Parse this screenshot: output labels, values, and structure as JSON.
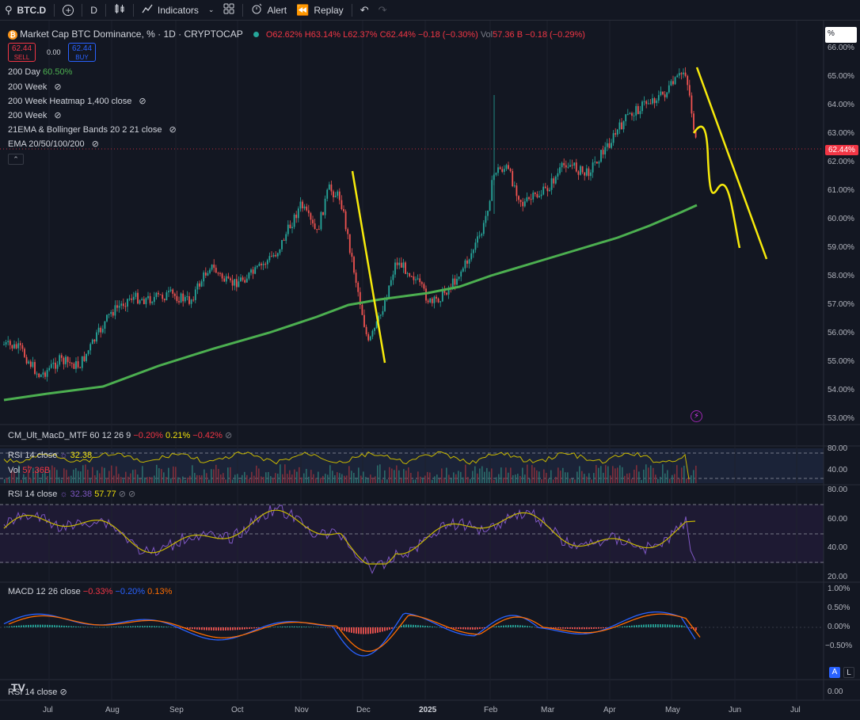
{
  "toolbar": {
    "symbol": "BTC.D",
    "interval": "D",
    "indicators": "Indicators",
    "alert": "Alert",
    "replay": "Replay"
  },
  "header": {
    "title": "Market Cap BTC Dominance, % · 1D · CRYPTOCAP",
    "o": "O62.62%",
    "h": "H63.14%",
    "l": "L62.37%",
    "c": "C62.44%",
    "chg": "−0.18 (−0.30%)",
    "vol_label": "Vol",
    "vol": "57.36",
    "vol_unit": "B",
    "vol_chg": "−0.18 (−0.29%)"
  },
  "trade": {
    "sell_price": "62.44",
    "sell_label": "SELL",
    "spread": "0.00",
    "buy_price": "62.44",
    "buy_label": "BUY"
  },
  "studies": {
    "ma200d_label": "200 Day",
    "ma200d_value": "60.50%",
    "s1": "200 Week",
    "s2": "200 Week Heatmap 1,400 close",
    "s3": "200 Week",
    "s4": "21EMA & Bollinger Bands 20 2 21 close",
    "s5": "EMA 20/50/100/200"
  },
  "price_axis": {
    "unit_box": "%",
    "labels": [
      "66.00%",
      "65.00%",
      "64.00%",
      "63.00%",
      "62.00%",
      "61.00%",
      "60.00%",
      "59.00%",
      "58.00%",
      "57.00%",
      "56.00%",
      "55.00%",
      "54.00%",
      "53.00%"
    ],
    "last": "62.44%"
  },
  "pane_macd_mtf": {
    "label": "CM_Ult_MacD_MTF 60 12 26 9",
    "v1": "−0.20%",
    "v2": "0.21%",
    "v3": "−0.42%"
  },
  "pane_rsi_small": {
    "label": "RSI 14 close",
    "v1": "32.38",
    "vol_label": "Vol",
    "vol_value": "57.36B",
    "axis": [
      "80.00",
      "40.00"
    ]
  },
  "pane_rsi": {
    "label": "RSI 14 close",
    "v1": "32.38",
    "v2": "57.77",
    "axis": [
      "80.00",
      "60.00",
      "40.00",
      "20.00"
    ]
  },
  "pane_macd": {
    "label": "MACD 12 26 close",
    "v1": "−0.33%",
    "v2": "−0.20%",
    "v3": "0.13%",
    "axis": [
      "1.00%",
      "0.50%",
      "0.00%",
      "−0.50%"
    ]
  },
  "pane_bottom": {
    "label": "RSI 14 close",
    "axis": "0.00"
  },
  "x_axis": [
    "Jul",
    "Aug",
    "Sep",
    "Oct",
    "Nov",
    "Dec",
    "2025",
    "Feb",
    "Mar",
    "Apr",
    "May",
    "Jun",
    "Jul"
  ],
  "scale_buttons": {
    "a": "A",
    "l": "L"
  },
  "colors": {
    "up": "#26a69a",
    "down": "#ef5350",
    "ma200": "#4caf50",
    "drawing": "#f7ea0b",
    "rsi": "#7e57c2",
    "macd": "#2962ff",
    "signal": "#ff6d00"
  }
}
